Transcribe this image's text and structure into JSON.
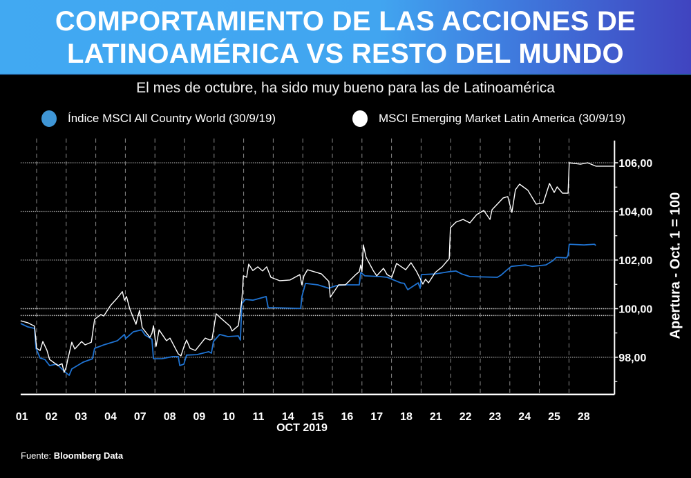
{
  "header": {
    "title_line1": "COMPORTAMIENTO DE LAS ACCIONES DE",
    "title_line2": "LATINOAMÉRICA VS RESTO DEL MUNDO",
    "subtitle": "El mes de octubre, ha sido muy bueno para las de Latinoamérica"
  },
  "footer": {
    "source_label": "Fuente:",
    "source_name": "Bloomberg Data"
  },
  "colors": {
    "world": "#1f73d2",
    "world_legend": "#3f96d6",
    "latam": "#ffffff"
  },
  "chart_data": {
    "type": "line",
    "title": "COMPORTAMIENTO DE LAS ACCIONES DE LATINOAMÉRICA VS RESTO DEL MUNDO",
    "xlabel": "OCT 2019",
    "ylabel": "Apertura - Oct. 1 = 100",
    "x_unit": "trading session index (0 = open of Oct 01)",
    "x_tick_labels": [
      "01",
      "02",
      "03",
      "04",
      "07",
      "08",
      "09",
      "10",
      "11",
      "14",
      "15",
      "16",
      "17",
      "18",
      "21",
      "22",
      "23",
      "24",
      "25",
      "28"
    ],
    "xlim": [
      0.46,
      20.54
    ],
    "y_ticks": [
      98,
      100,
      102,
      104,
      106
    ],
    "y_tick_labels": [
      "98,00",
      "100,00",
      "102,00",
      "104,00",
      "106,00"
    ],
    "y_minor_ticks": [
      97,
      99,
      101,
      103,
      105
    ],
    "reference_lines": [
      100,
      99.72
    ],
    "ylim": [
      96.5,
      107
    ],
    "grid": true,
    "legend_position": "top",
    "series": [
      {
        "name": "Índice MSCI All Country World (30/9/19)",
        "color_key": "world",
        "points": [
          [
            0.46,
            99.39
          ],
          [
            0.7,
            99.25
          ],
          [
            0.93,
            99.19
          ],
          [
            0.98,
            98.37
          ],
          [
            1.12,
            97.97
          ],
          [
            1.28,
            97.91
          ],
          [
            1.44,
            97.66
          ],
          [
            1.68,
            97.72
          ],
          [
            1.98,
            97.38
          ],
          [
            2.1,
            97.26
          ],
          [
            2.19,
            97.52
          ],
          [
            2.57,
            97.8
          ],
          [
            2.89,
            97.94
          ],
          [
            2.96,
            98.37
          ],
          [
            3.27,
            98.51
          ],
          [
            3.73,
            98.68
          ],
          [
            3.97,
            98.94
          ],
          [
            4.01,
            98.77
          ],
          [
            4.27,
            99.05
          ],
          [
            4.55,
            99.13
          ],
          [
            4.67,
            98.91
          ],
          [
            4.9,
            98.74
          ],
          [
            4.95,
            97.94
          ],
          [
            5.23,
            97.94
          ],
          [
            5.61,
            98.03
          ],
          [
            5.79,
            98.03
          ],
          [
            5.84,
            97.66
          ],
          [
            5.98,
            97.72
          ],
          [
            6.07,
            98.09
          ],
          [
            6.42,
            98.11
          ],
          [
            6.82,
            98.23
          ],
          [
            6.91,
            98.17
          ],
          [
            6.98,
            98.65
          ],
          [
            7.19,
            98.94
          ],
          [
            7.47,
            98.85
          ],
          [
            7.82,
            98.88
          ],
          [
            7.89,
            98.71
          ],
          [
            7.94,
            100.21
          ],
          [
            8.06,
            100.38
          ],
          [
            8.31,
            100.35
          ],
          [
            8.76,
            100.5
          ],
          [
            8.83,
            100.04
          ],
          [
            9.06,
            100.04
          ],
          [
            9.93,
            100.01
          ],
          [
            9.97,
            100.5
          ],
          [
            10.09,
            101.04
          ],
          [
            10.51,
            100.98
          ],
          [
            10.88,
            100.84
          ],
          [
            11.14,
            100.95
          ],
          [
            11.44,
            100.98
          ],
          [
            11.91,
            100.98
          ],
          [
            11.96,
            101.49
          ],
          [
            12.1,
            101.35
          ],
          [
            12.61,
            101.32
          ],
          [
            12.85,
            101.29
          ],
          [
            13.31,
            101.06
          ],
          [
            13.43,
            101.04
          ],
          [
            13.55,
            100.78
          ],
          [
            13.9,
            101.06
          ],
          [
            13.97,
            100.84
          ],
          [
            14.01,
            101.4
          ],
          [
            14.48,
            101.43
          ],
          [
            14.95,
            101.52
          ],
          [
            15.18,
            101.55
          ],
          [
            15.37,
            101.43
          ],
          [
            15.65,
            101.32
          ],
          [
            16.58,
            101.29
          ],
          [
            16.7,
            101.38
          ],
          [
            16.86,
            101.55
          ],
          [
            17.05,
            101.74
          ],
          [
            17.52,
            101.8
          ],
          [
            17.76,
            101.74
          ],
          [
            18.22,
            101.8
          ],
          [
            18.45,
            101.97
          ],
          [
            18.57,
            102.11
          ],
          [
            18.92,
            102.09
          ],
          [
            18.97,
            102.2
          ],
          [
            19.01,
            102.65
          ],
          [
            19.51,
            102.62
          ],
          [
            19.86,
            102.65
          ],
          [
            19.91,
            102.6
          ]
        ]
      },
      {
        "name": "MSCI Emerging Market Latin America (30/9/19)",
        "color_key": "latam",
        "points": [
          [
            0.46,
            99.5
          ],
          [
            0.7,
            99.42
          ],
          [
            0.93,
            99.28
          ],
          [
            1.0,
            98.37
          ],
          [
            1.12,
            98.28
          ],
          [
            1.21,
            98.65
          ],
          [
            1.35,
            98.28
          ],
          [
            1.44,
            97.91
          ],
          [
            1.72,
            97.66
          ],
          [
            1.86,
            97.74
          ],
          [
            1.93,
            97.38
          ],
          [
            2.0,
            97.6
          ],
          [
            2.05,
            97.89
          ],
          [
            2.19,
            98.62
          ],
          [
            2.29,
            98.34
          ],
          [
            2.52,
            98.65
          ],
          [
            2.64,
            98.51
          ],
          [
            2.85,
            98.62
          ],
          [
            2.96,
            99.56
          ],
          [
            3.17,
            99.76
          ],
          [
            3.27,
            99.7
          ],
          [
            3.5,
            100.13
          ],
          [
            3.73,
            100.44
          ],
          [
            3.9,
            100.7
          ],
          [
            3.97,
            100.35
          ],
          [
            4.04,
            100.5
          ],
          [
            4.15,
            99.99
          ],
          [
            4.36,
            99.36
          ],
          [
            4.48,
            99.93
          ],
          [
            4.57,
            99.22
          ],
          [
            4.83,
            98.82
          ],
          [
            4.9,
            98.99
          ],
          [
            4.95,
            99.3
          ],
          [
            5.04,
            98.45
          ],
          [
            5.14,
            99.13
          ],
          [
            5.39,
            98.68
          ],
          [
            5.51,
            98.79
          ],
          [
            5.79,
            98.14
          ],
          [
            5.88,
            98.06
          ],
          [
            5.98,
            98.43
          ],
          [
            6.07,
            98.71
          ],
          [
            6.19,
            98.37
          ],
          [
            6.37,
            98.28
          ],
          [
            6.7,
            98.79
          ],
          [
            6.86,
            98.71
          ],
          [
            6.93,
            98.74
          ],
          [
            7.07,
            99.79
          ],
          [
            7.19,
            99.65
          ],
          [
            7.54,
            99.28
          ],
          [
            7.61,
            99.08
          ],
          [
            7.82,
            99.3
          ],
          [
            7.94,
            100.35
          ],
          [
            7.99,
            101.35
          ],
          [
            8.1,
            101.29
          ],
          [
            8.17,
            101.83
          ],
          [
            8.31,
            101.57
          ],
          [
            8.48,
            101.72
          ],
          [
            8.64,
            101.55
          ],
          [
            8.78,
            101.72
          ],
          [
            8.92,
            101.29
          ],
          [
            9.22,
            101.15
          ],
          [
            9.57,
            101.18
          ],
          [
            9.9,
            101.4
          ],
          [
            9.97,
            100.98
          ],
          [
            10.04,
            101.35
          ],
          [
            10.16,
            101.6
          ],
          [
            10.63,
            101.43
          ],
          [
            10.88,
            101.12
          ],
          [
            10.93,
            100.47
          ],
          [
            11.21,
            100.98
          ],
          [
            11.44,
            100.98
          ],
          [
            11.79,
            101.4
          ],
          [
            11.91,
            101.52
          ],
          [
            11.96,
            101.8
          ],
          [
            12.0,
            101.52
          ],
          [
            12.05,
            102.62
          ],
          [
            12.14,
            102.11
          ],
          [
            12.38,
            101.57
          ],
          [
            12.5,
            101.35
          ],
          [
            12.73,
            101.66
          ],
          [
            12.85,
            101.4
          ],
          [
            13.01,
            101.29
          ],
          [
            13.17,
            101.86
          ],
          [
            13.48,
            101.6
          ],
          [
            13.66,
            101.89
          ],
          [
            13.85,
            101.52
          ],
          [
            14.06,
            101.01
          ],
          [
            14.15,
            101.21
          ],
          [
            14.25,
            101.06
          ],
          [
            14.48,
            101.49
          ],
          [
            14.71,
            101.72
          ],
          [
            14.95,
            102.06
          ],
          [
            14.99,
            103.33
          ],
          [
            15.18,
            103.56
          ],
          [
            15.42,
            103.67
          ],
          [
            15.65,
            103.53
          ],
          [
            15.88,
            103.87
          ],
          [
            16.12,
            104.04
          ],
          [
            16.33,
            103.67
          ],
          [
            16.4,
            104.07
          ],
          [
            16.77,
            104.55
          ],
          [
            16.93,
            104.61
          ],
          [
            17.07,
            103.96
          ],
          [
            17.19,
            104.89
          ],
          [
            17.33,
            105.12
          ],
          [
            17.61,
            104.87
          ],
          [
            17.89,
            104.3
          ],
          [
            18.13,
            104.35
          ],
          [
            18.34,
            105.15
          ],
          [
            18.5,
            104.78
          ],
          [
            18.6,
            105.01
          ],
          [
            18.78,
            104.75
          ],
          [
            18.97,
            104.75
          ],
          [
            19.01,
            106.0
          ],
          [
            19.39,
            105.94
          ],
          [
            19.63,
            106.0
          ],
          [
            19.91,
            105.86
          ],
          [
            20.54,
            105.86
          ]
        ]
      }
    ]
  }
}
